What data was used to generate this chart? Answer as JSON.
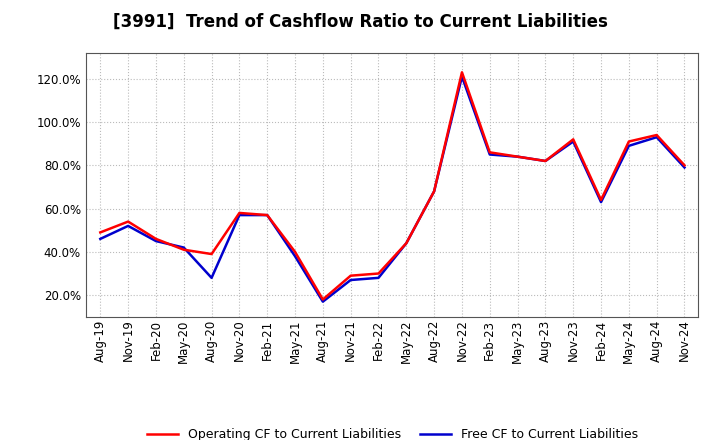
{
  "title": "[3991]  Trend of Cashflow Ratio to Current Liabilities",
  "x_labels": [
    "Aug-19",
    "Nov-19",
    "Feb-20",
    "May-20",
    "Aug-20",
    "Nov-20",
    "Feb-21",
    "May-21",
    "Aug-21",
    "Nov-21",
    "Feb-22",
    "May-22",
    "Aug-22",
    "Nov-22",
    "Feb-23",
    "May-23",
    "Aug-23",
    "Nov-23",
    "Feb-24",
    "May-24",
    "Aug-24",
    "Nov-24"
  ],
  "operating_cf": [
    0.49,
    0.54,
    0.46,
    0.41,
    0.39,
    0.58,
    0.57,
    0.4,
    0.18,
    0.29,
    0.3,
    0.44,
    0.68,
    1.23,
    0.86,
    0.84,
    0.82,
    0.92,
    0.64,
    0.91,
    0.94,
    0.8
  ],
  "free_cf": [
    0.46,
    0.52,
    0.45,
    0.42,
    0.28,
    0.57,
    0.57,
    0.38,
    0.17,
    0.27,
    0.28,
    0.44,
    0.68,
    1.21,
    0.85,
    0.84,
    0.82,
    0.91,
    0.63,
    0.89,
    0.93,
    0.79
  ],
  "operating_color": "#ff0000",
  "free_color": "#0000cd",
  "ylabel_ticks": [
    0.2,
    0.4,
    0.6,
    0.8,
    1.0,
    1.2
  ],
  "bg_color": "#ffffff",
  "grid_color": "#bbbbbb",
  "spine_color": "#555555",
  "legend_operating": "Operating CF to Current Liabilities",
  "legend_free": "Free CF to Current Liabilities",
  "ylim_min": 0.1,
  "ylim_max": 1.32,
  "title_fontsize": 12,
  "tick_fontsize": 8.5,
  "legend_fontsize": 9
}
